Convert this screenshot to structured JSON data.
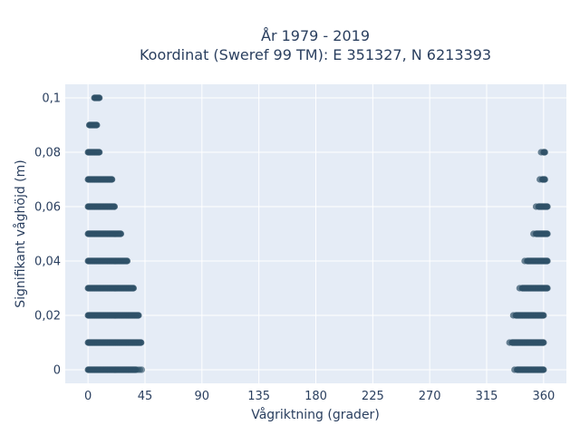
{
  "chart_data": {
    "type": "scatter",
    "title": "År 1979 - 2019",
    "subtitle": "Koordinat (Sweref 99 TM): E 351327, N 6213393",
    "xlabel": "Vågriktning (grader)",
    "ylabel": "Signifikant våghöjd (m)",
    "xlim": [
      -18,
      378
    ],
    "ylim": [
      -0.005,
      0.105
    ],
    "x_ticks": [
      0,
      45,
      90,
      135,
      180,
      225,
      270,
      315,
      360
    ],
    "x_tick_labels": [
      "0",
      "45",
      "90",
      "135",
      "180",
      "225",
      "270",
      "315",
      "360"
    ],
    "y_ticks": [
      0,
      0.02,
      0.04,
      0.06,
      0.08,
      0.1
    ],
    "y_tick_labels": [
      "0",
      "0,02",
      "0,04",
      "0,06",
      "0,08",
      "0,1"
    ],
    "grid": true,
    "marker_color": "#2f5168",
    "background_color": "#e5ecf6",
    "series": [
      {
        "rows": [
          {
            "y": 0.0,
            "x_min": 0,
            "x_max": 43,
            "sparse_from": 38,
            "right_min": 337,
            "right_max": 360
          },
          {
            "y": 0.01,
            "x_min": 0,
            "x_max": 42,
            "right_min": 333,
            "right_max": 360
          },
          {
            "y": 0.02,
            "x_min": 0,
            "x_max": 40,
            "right_min": 336,
            "right_max": 360
          },
          {
            "y": 0.03,
            "x_min": 0,
            "x_max": 36,
            "right_min": 341,
            "right_max": 363
          },
          {
            "y": 0.04,
            "x_min": 0,
            "x_max": 31,
            "right_min": 345,
            "right_max": 363
          },
          {
            "y": 0.05,
            "x_min": 0,
            "x_max": 26,
            "right_min": 352,
            "right_max": 363
          },
          {
            "y": 0.06,
            "x_min": 0,
            "x_max": 21,
            "right_min": 354,
            "right_max": 363
          },
          {
            "y": 0.07,
            "x_min": 0,
            "x_max": 19,
            "right_min": 357,
            "right_max": 361
          },
          {
            "y": 0.08,
            "x_min": 0,
            "x_max": 9,
            "right_min": 358,
            "right_max": 361
          },
          {
            "y": 0.09,
            "x_min": 1,
            "x_max": 7
          },
          {
            "y": 0.1,
            "x_min": 5,
            "x_max": 9
          }
        ]
      }
    ]
  }
}
